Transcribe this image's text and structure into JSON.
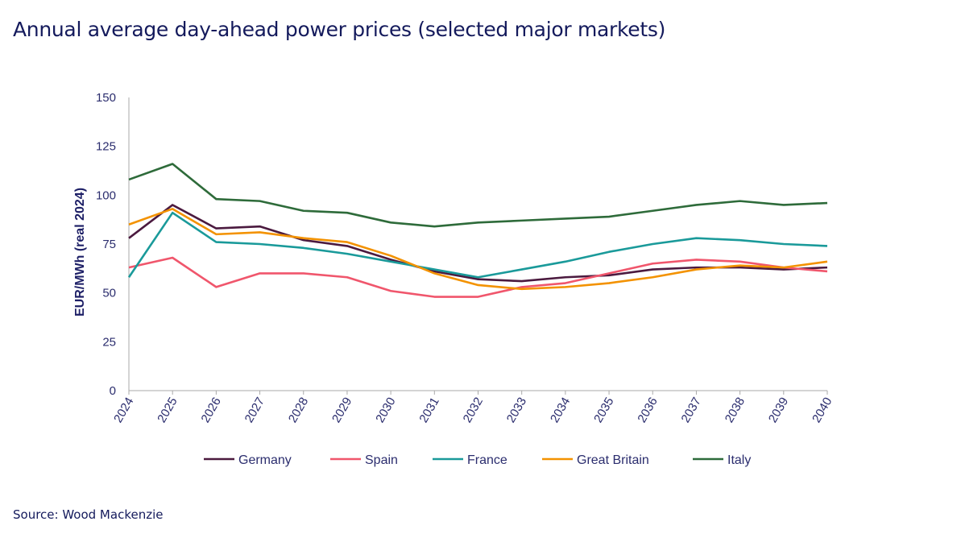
{
  "title": "Annual average day-ahead power prices (selected major markets)",
  "source": "Source: Wood Mackenzie",
  "chart_data": {
    "type": "line",
    "title": "",
    "xlabel": "",
    "ylabel": "EUR/MWh (real 2024)",
    "ylim": [
      0,
      150
    ],
    "yticks": [
      0,
      25,
      50,
      75,
      100,
      125,
      150
    ],
    "x": [
      "2024",
      "2025",
      "2026",
      "2027",
      "2028",
      "2029",
      "2030",
      "2031",
      "2032",
      "2033",
      "2034",
      "2035",
      "2036",
      "2037",
      "2038",
      "2039",
      "2040"
    ],
    "grid": false,
    "legend": "bottom",
    "series": [
      {
        "name": "Germany",
        "color": "#4b1a3f",
        "values": [
          78,
          95,
          83,
          84,
          77,
          74,
          67,
          61,
          57,
          56,
          58,
          59,
          62,
          63,
          63,
          62,
          63
        ]
      },
      {
        "name": "Spain",
        "color": "#f0566c",
        "values": [
          63,
          68,
          53,
          60,
          60,
          58,
          51,
          48,
          48,
          53,
          55,
          60,
          65,
          67,
          66,
          63,
          61
        ]
      },
      {
        "name": "France",
        "color": "#1a9a9a",
        "values": [
          58,
          91,
          76,
          75,
          73,
          70,
          66,
          62,
          58,
          62,
          66,
          71,
          75,
          78,
          77,
          75,
          74
        ]
      },
      {
        "name": "Great Britain",
        "color": "#f39200",
        "values": [
          85,
          93,
          80,
          81,
          78,
          76,
          69,
          60,
          54,
          52,
          53,
          55,
          58,
          62,
          64,
          63,
          66
        ]
      },
      {
        "name": "Italy",
        "color": "#2e6b3a",
        "values": [
          108,
          116,
          98,
          97,
          92,
          91,
          86,
          84,
          86,
          87,
          88,
          89,
          92,
          95,
          97,
          95,
          96
        ]
      }
    ]
  }
}
